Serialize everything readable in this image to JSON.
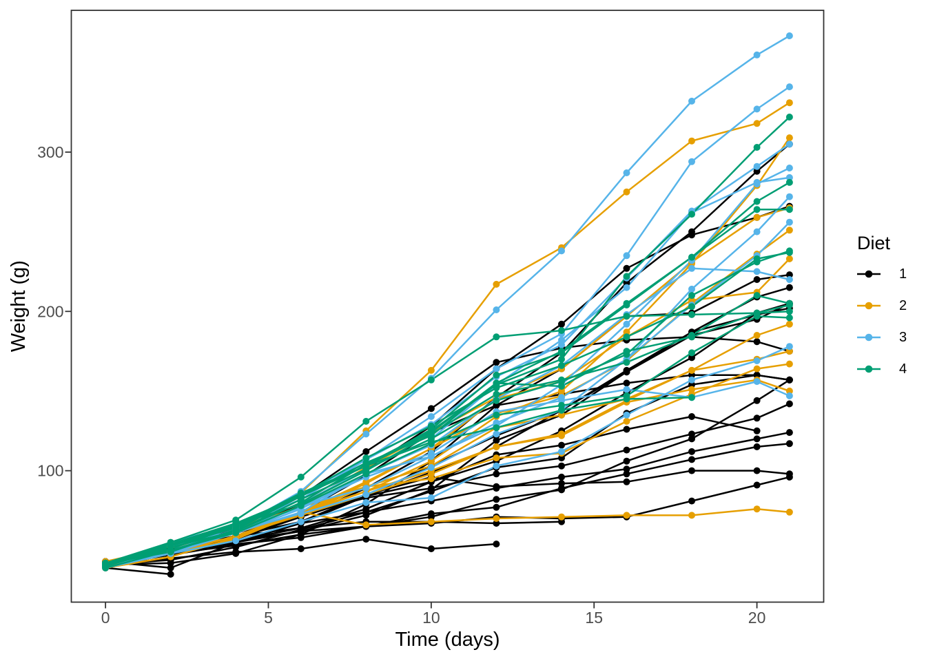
{
  "chart_data": {
    "type": "line",
    "title": "",
    "xlabel": "Time (days)",
    "ylabel": "Weight (g)",
    "x_ticks": [
      0,
      5,
      10,
      15,
      20
    ],
    "y_ticks": [
      100,
      200,
      300
    ],
    "xlim": [
      -1.05,
      22.05
    ],
    "ylim": [
      17.5,
      389
    ],
    "grid": "off",
    "panel_border_color": "#333333",
    "tick_label_color": "#4d4d4d",
    "legend": {
      "title": "Diet",
      "position": "right",
      "items": [
        {
          "label": "1",
          "color": "#000000"
        },
        {
          "label": "2",
          "color": "#E69F00"
        },
        {
          "label": "3",
          "color": "#56B4E9"
        },
        {
          "label": "4",
          "color": "#009E73"
        }
      ]
    },
    "times": [
      0,
      2,
      4,
      6,
      8,
      10,
      12,
      14,
      16,
      18,
      20,
      21
    ],
    "series": [
      {
        "chick": 1,
        "diet": 1,
        "weights": [
          42,
          51,
          59,
          64,
          76,
          93,
          106,
          125,
          149,
          171,
          199,
          205
        ]
      },
      {
        "chick": 2,
        "diet": 1,
        "weights": [
          40,
          49,
          58,
          72,
          84,
          103,
          122,
          138,
          162,
          187,
          209,
          215
        ]
      },
      {
        "chick": 3,
        "diet": 1,
        "weights": [
          43,
          39,
          55,
          67,
          84,
          99,
          115,
          138,
          163,
          187,
          198,
          202
        ]
      },
      {
        "chick": 4,
        "diet": 1,
        "weights": [
          42,
          49,
          56,
          67,
          74,
          87,
          102,
          108,
          136,
          154,
          160,
          157
        ]
      },
      {
        "chick": 5,
        "diet": 1,
        "weights": [
          41,
          42,
          48,
          60,
          79,
          106,
          141,
          164,
          197,
          199,
          220,
          223
        ]
      },
      {
        "chick": 6,
        "diet": 1,
        "weights": [
          41,
          49,
          59,
          74,
          97,
          124,
          141,
          148,
          155,
          160,
          160,
          157
        ]
      },
      {
        "chick": 7,
        "diet": 1,
        "weights": [
          41,
          49,
          57,
          71,
          89,
          112,
          146,
          174,
          218,
          250,
          288,
          305
        ]
      },
      {
        "chick": 8,
        "diet": 1,
        "weights": [
          42,
          50,
          61,
          71,
          84,
          93,
          110,
          116,
          126,
          134,
          125
        ]
      },
      {
        "chick": 9,
        "diet": 1,
        "weights": [
          42,
          51,
          59,
          68,
          85,
          96,
          90,
          92,
          93,
          100,
          100,
          98
        ]
      },
      {
        "chick": 10,
        "diet": 1,
        "weights": [
          41,
          44,
          52,
          63,
          74,
          81,
          89,
          96,
          101,
          112,
          120,
          124
        ]
      },
      {
        "chick": 11,
        "diet": 1,
        "weights": [
          43,
          51,
          63,
          84,
          112,
          139,
          168,
          177,
          182,
          184,
          181,
          175
        ]
      },
      {
        "chick": 12,
        "diet": 1,
        "weights": [
          41,
          49,
          56,
          62,
          72,
          88,
          119,
          135,
          162,
          185,
          195,
          205
        ]
      },
      {
        "chick": 13,
        "diet": 1,
        "weights": [
          41,
          48,
          53,
          60,
          65,
          67,
          71,
          70,
          71,
          81,
          91,
          96
        ]
      },
      {
        "chick": 14,
        "diet": 1,
        "weights": [
          41,
          49,
          62,
          79,
          101,
          128,
          164,
          192,
          227,
          248,
          259,
          266
        ]
      },
      {
        "chick": 15,
        "diet": 1,
        "weights": [
          41,
          49,
          56,
          64,
          68,
          68,
          67,
          68
        ]
      },
      {
        "chick": 16,
        "diet": 1,
        "weights": [
          41,
          45,
          49,
          51,
          57,
          51,
          54
        ]
      },
      {
        "chick": 17,
        "diet": 1,
        "weights": [
          42,
          51,
          61,
          72,
          83,
          89,
          98,
          103,
          113,
          123,
          133,
          142
        ]
      },
      {
        "chick": 18,
        "diet": 1,
        "weights": [
          39,
          35
        ]
      },
      {
        "chick": 19,
        "diet": 1,
        "weights": [
          43,
          48,
          55,
          62,
          65,
          71,
          82,
          88,
          106,
          120,
          144,
          157
        ]
      },
      {
        "chick": 20,
        "diet": 1,
        "weights": [
          41,
          47,
          54,
          58,
          65,
          73,
          77,
          89,
          98,
          107,
          115,
          117
        ]
      },
      {
        "chick": 21,
        "diet": 2,
        "weights": [
          40,
          50,
          62,
          86,
          125,
          163,
          217,
          240,
          275,
          307,
          318,
          331
        ]
      },
      {
        "chick": 22,
        "diet": 2,
        "weights": [
          41,
          55,
          64,
          77,
          90,
          95,
          108,
          111,
          131,
          148,
          164,
          167
        ]
      },
      {
        "chick": 23,
        "diet": 2,
        "weights": [
          43,
          52,
          61,
          73,
          90,
          103,
          127,
          135,
          145,
          163,
          170,
          175
        ]
      },
      {
        "chick": 24,
        "diet": 2,
        "weights": [
          42,
          52,
          58,
          74,
          66,
          68,
          70,
          71,
          72,
          72,
          76,
          74
        ]
      },
      {
        "chick": 25,
        "diet": 2,
        "weights": [
          40,
          49,
          62,
          78,
          102,
          124,
          146,
          164,
          197,
          231,
          259,
          265
        ]
      },
      {
        "chick": 26,
        "diet": 2,
        "weights": [
          42,
          48,
          57,
          74,
          93,
          114,
          136,
          147,
          169,
          205,
          236,
          251
        ]
      },
      {
        "chick": 27,
        "diet": 2,
        "weights": [
          39,
          46,
          58,
          73,
          87,
          100,
          115,
          123,
          144,
          163,
          185,
          192
        ]
      },
      {
        "chick": 28,
        "diet": 2,
        "weights": [
          39,
          46,
          58,
          73,
          92,
          114,
          145,
          156,
          184,
          207,
          212,
          233
        ]
      },
      {
        "chick": 29,
        "diet": 2,
        "weights": [
          39,
          48,
          59,
          74,
          87,
          106,
          134,
          150,
          187,
          230,
          279,
          309
        ]
      },
      {
        "chick": 30,
        "diet": 2,
        "weights": [
          42,
          48,
          59,
          72,
          85,
          98,
          115,
          122,
          143,
          151,
          157,
          150
        ]
      },
      {
        "chick": 31,
        "diet": 3,
        "weights": [
          42,
          53,
          62,
          73,
          85,
          102,
          123,
          138,
          170,
          204,
          235,
          256
        ]
      },
      {
        "chick": 32,
        "diet": 3,
        "weights": [
          41,
          49,
          65,
          82,
          107,
          129,
          159,
          179,
          221,
          263,
          291,
          305
        ]
      },
      {
        "chick": 33,
        "diet": 3,
        "weights": [
          39,
          50,
          63,
          77,
          96,
          111,
          137,
          144,
          151,
          146,
          156,
          147
        ]
      },
      {
        "chick": 34,
        "diet": 3,
        "weights": [
          41,
          49,
          63,
          85,
          107,
          134,
          164,
          186,
          235,
          294,
          327,
          341
        ]
      },
      {
        "chick": 35,
        "diet": 3,
        "weights": [
          41,
          53,
          64,
          87,
          123,
          158,
          201,
          238,
          287,
          332,
          361,
          373
        ]
      },
      {
        "chick": 36,
        "diet": 3,
        "weights": [
          39,
          48,
          61,
          76,
          98,
          116,
          145,
          166,
          198,
          227,
          225,
          220
        ]
      },
      {
        "chick": 37,
        "diet": 3,
        "weights": [
          41,
          48,
          56,
          68,
          80,
          83,
          103,
          112,
          135,
          157,
          169,
          178
        ]
      },
      {
        "chick": 38,
        "diet": 3,
        "weights": [
          41,
          49,
          61,
          74,
          98,
          109,
          128,
          154,
          192,
          232,
          280,
          290
        ]
      },
      {
        "chick": 39,
        "diet": 3,
        "weights": [
          42,
          50,
          61,
          78,
          89,
          109,
          130,
          146,
          170,
          214,
          250,
          272
        ]
      },
      {
        "chick": 40,
        "diet": 3,
        "weights": [
          41,
          55,
          66,
          79,
          101,
          120,
          154,
          182,
          215,
          262,
          281,
          284
        ]
      },
      {
        "chick": 41,
        "diet": 4,
        "weights": [
          42,
          51,
          66,
          85,
          103,
          124,
          155,
          153,
          175,
          184,
          199,
          204
        ]
      },
      {
        "chick": 42,
        "diet": 4,
        "weights": [
          42,
          49,
          63,
          84,
          103,
          126,
          160,
          174,
          204,
          234,
          269,
          281
        ]
      },
      {
        "chick": 43,
        "diet": 4,
        "weights": [
          42,
          55,
          69,
          96,
          131,
          157,
          184,
          188,
          197,
          198,
          199,
          200
        ]
      },
      {
        "chick": 44,
        "diet": 4,
        "weights": [
          42,
          51,
          65,
          86,
          103,
          118,
          127,
          138,
          145,
          146
        ]
      },
      {
        "chick": 45,
        "diet": 4,
        "weights": [
          41,
          50,
          61,
          78,
          98,
          117,
          135,
          141,
          147,
          174,
          197,
          196
        ]
      },
      {
        "chick": 46,
        "diet": 4,
        "weights": [
          40,
          52,
          62,
          82,
          101,
          120,
          144,
          156,
          173,
          210,
          231,
          238
        ]
      },
      {
        "chick": 47,
        "diet": 4,
        "weights": [
          41,
          53,
          66,
          79,
          100,
          123,
          148,
          157,
          168,
          185,
          210,
          205
        ]
      },
      {
        "chick": 48,
        "diet": 4,
        "weights": [
          39,
          50,
          62,
          80,
          104,
          125,
          154,
          170,
          222,
          261,
          303,
          322
        ]
      },
      {
        "chick": 49,
        "diet": 4,
        "weights": [
          40,
          53,
          64,
          85,
          108,
          128,
          152,
          166,
          184,
          203,
          233,
          237
        ]
      },
      {
        "chick": 50,
        "diet": 4,
        "weights": [
          41,
          54,
          67,
          84,
          105,
          122,
          155,
          175,
          205,
          234,
          264,
          264
        ]
      }
    ]
  }
}
